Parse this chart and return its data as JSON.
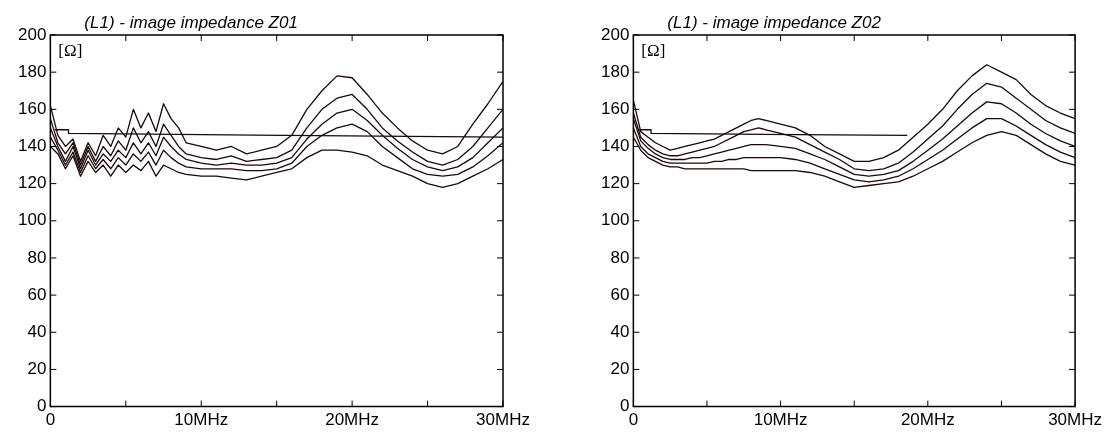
{
  "chart_data": [
    {
      "type": "line",
      "title": "(L1) - image impedance Z01",
      "annotations": [
        "[Ω]"
      ],
      "marker": "none",
      "grid": false,
      "legend": false,
      "x": [
        0,
        0.5,
        1,
        1.5,
        2,
        2.5,
        3,
        3.5,
        4,
        4.5,
        5,
        5.5,
        6,
        6.5,
        7,
        7.5,
        8,
        8.5,
        9,
        10,
        11,
        12,
        13,
        14,
        15,
        16,
        17,
        18,
        19,
        20,
        21,
        22,
        23,
        24,
        25,
        26,
        27,
        28,
        29,
        30
      ],
      "xlim": [
        0,
        30
      ],
      "xticks": [
        0,
        {
          "value": 5,
          "label": null
        },
        {
          "value": 10,
          "label": "10MHz"
        },
        {
          "value": 15,
          "label": null
        },
        {
          "value": 20,
          "label": "20MHz"
        },
        {
          "value": 25,
          "label": null
        },
        {
          "value": 30,
          "label": "30MHz"
        }
      ],
      "ylim": [
        0,
        200
      ],
      "yticks": [
        0,
        20,
        40,
        60,
        80,
        100,
        120,
        140,
        160,
        180,
        200
      ],
      "series": [
        {
          "color": "#1c0808",
          "values": [
            162,
            146,
            140,
            144,
            132,
            142,
            135,
            146,
            140,
            150,
            145,
            160,
            150,
            158,
            148,
            163,
            155,
            150,
            142,
            140,
            138,
            140,
            136,
            138,
            140,
            146,
            160,
            170,
            178,
            177,
            168,
            158,
            150,
            143,
            138,
            136,
            140,
            152,
            163,
            175
          ]
        },
        {
          "color": "#1c0808",
          "values": [
            155,
            142,
            136,
            142,
            130,
            140,
            132,
            140,
            135,
            143,
            138,
            150,
            142,
            148,
            140,
            152,
            146,
            140,
            136,
            134,
            133,
            135,
            132,
            133,
            134,
            138,
            150,
            160,
            166,
            168,
            160,
            150,
            143,
            137,
            132,
            130,
            133,
            140,
            150,
            160
          ]
        },
        {
          "color": "#1c0808",
          "values": [
            150,
            140,
            132,
            140,
            128,
            138,
            130,
            136,
            132,
            138,
            134,
            142,
            136,
            142,
            135,
            145,
            140,
            136,
            133,
            131,
            130,
            131,
            130,
            130,
            131,
            134,
            144,
            152,
            158,
            160,
            154,
            146,
            139,
            133,
            129,
            127,
            129,
            134,
            142,
            150
          ]
        },
        {
          "color": "#1c0808",
          "values": [
            145,
            138,
            130,
            137,
            126,
            135,
            128,
            133,
            128,
            134,
            130,
            136,
            132,
            137,
            130,
            138,
            134,
            131,
            129,
            128,
            128,
            128,
            127,
            127,
            128,
            131,
            140,
            146,
            150,
            152,
            148,
            140,
            134,
            128,
            125,
            124,
            125,
            129,
            135,
            142
          ]
        },
        {
          "color": "#1c0808",
          "values": [
            140,
            136,
            128,
            135,
            124,
            132,
            126,
            130,
            124,
            130,
            126,
            130,
            127,
            132,
            124,
            130,
            128,
            126,
            125,
            124,
            124,
            123,
            122,
            124,
            126,
            128,
            134,
            138,
            138,
            137,
            135,
            130,
            127,
            124,
            120,
            118,
            120,
            124,
            128,
            133
          ]
        },
        {
          "color": "#1c0808",
          "x": [
            0.3,
            1.2,
            1.2,
            30
          ],
          "values": [
            149,
            149,
            147,
            145
          ]
        }
      ]
    },
    {
      "type": "line",
      "title": "(L1) - image impedance Z02",
      "annotations": [
        "[Ω]"
      ],
      "marker": "none",
      "grid": false,
      "legend": false,
      "x": [
        0,
        0.5,
        1,
        1.5,
        2,
        2.5,
        3,
        3.5,
        4,
        4.5,
        5,
        5.5,
        6,
        6.5,
        7,
        7.5,
        8,
        8.5,
        9,
        10,
        11,
        12,
        13,
        14,
        15,
        16,
        17,
        18,
        19,
        20,
        21,
        22,
        23,
        24,
        25,
        26,
        27,
        28,
        29,
        30
      ],
      "xlim": [
        0,
        30
      ],
      "xticks": [
        0,
        {
          "value": 5,
          "label": null
        },
        {
          "value": 10,
          "label": "10MHz"
        },
        {
          "value": 15,
          "label": null
        },
        {
          "value": 20,
          "label": "20MHz"
        },
        {
          "value": 25,
          "label": null
        },
        {
          "value": 30,
          "label": "30MHz"
        }
      ],
      "ylim": [
        0,
        200
      ],
      "yticks": [
        0,
        20,
        40,
        60,
        80,
        100,
        120,
        140,
        160,
        180,
        200
      ],
      "series": [
        {
          "color": "#1c0808",
          "values": [
            165,
            148,
            145,
            142,
            140,
            138,
            139,
            140,
            141,
            142,
            143,
            144,
            146,
            148,
            150,
            152,
            154,
            155,
            154,
            152,
            150,
            146,
            140,
            136,
            132,
            132,
            134,
            138,
            145,
            152,
            160,
            170,
            178,
            184,
            180,
            176,
            168,
            162,
            158,
            155
          ]
        },
        {
          "color": "#1c0808",
          "values": [
            158,
            145,
            141,
            138,
            136,
            135,
            135,
            136,
            137,
            138,
            139,
            140,
            142,
            144,
            146,
            148,
            149,
            150,
            149,
            147,
            145,
            141,
            137,
            133,
            128,
            127,
            128,
            131,
            137,
            144,
            151,
            160,
            168,
            174,
            172,
            166,
            160,
            154,
            150,
            147
          ]
        },
        {
          "color": "#1c0808",
          "values": [
            155,
            143,
            139,
            136,
            134,
            133,
            133,
            133,
            134,
            134,
            135,
            136,
            137,
            138,
            139,
            140,
            141,
            141,
            141,
            140,
            139,
            136,
            133,
            129,
            125,
            124,
            125,
            127,
            132,
            138,
            144,
            151,
            158,
            164,
            163,
            158,
            152,
            147,
            143,
            140
          ]
        },
        {
          "color": "#1c0808",
          "values": [
            150,
            140,
            136,
            134,
            132,
            131,
            131,
            131,
            131,
            131,
            131,
            132,
            132,
            133,
            133,
            134,
            134,
            134,
            134,
            134,
            133,
            131,
            128,
            125,
            122,
            121,
            122,
            124,
            128,
            133,
            138,
            144,
            150,
            155,
            155,
            151,
            146,
            141,
            137,
            134
          ]
        },
        {
          "color": "#1c0808",
          "values": [
            145,
            138,
            134,
            132,
            130,
            129,
            129,
            128,
            128,
            128,
            128,
            128,
            128,
            128,
            128,
            128,
            127,
            127,
            127,
            127,
            127,
            126,
            124,
            121,
            118,
            119,
            120,
            121,
            124,
            128,
            132,
            137,
            142,
            146,
            148,
            146,
            141,
            136,
            132,
            130
          ]
        },
        {
          "color": "#1c0808",
          "x": [
            0.3,
            1.2,
            1.2,
            18.6
          ],
          "values": [
            149,
            149,
            147,
            146
          ]
        }
      ]
    }
  ]
}
